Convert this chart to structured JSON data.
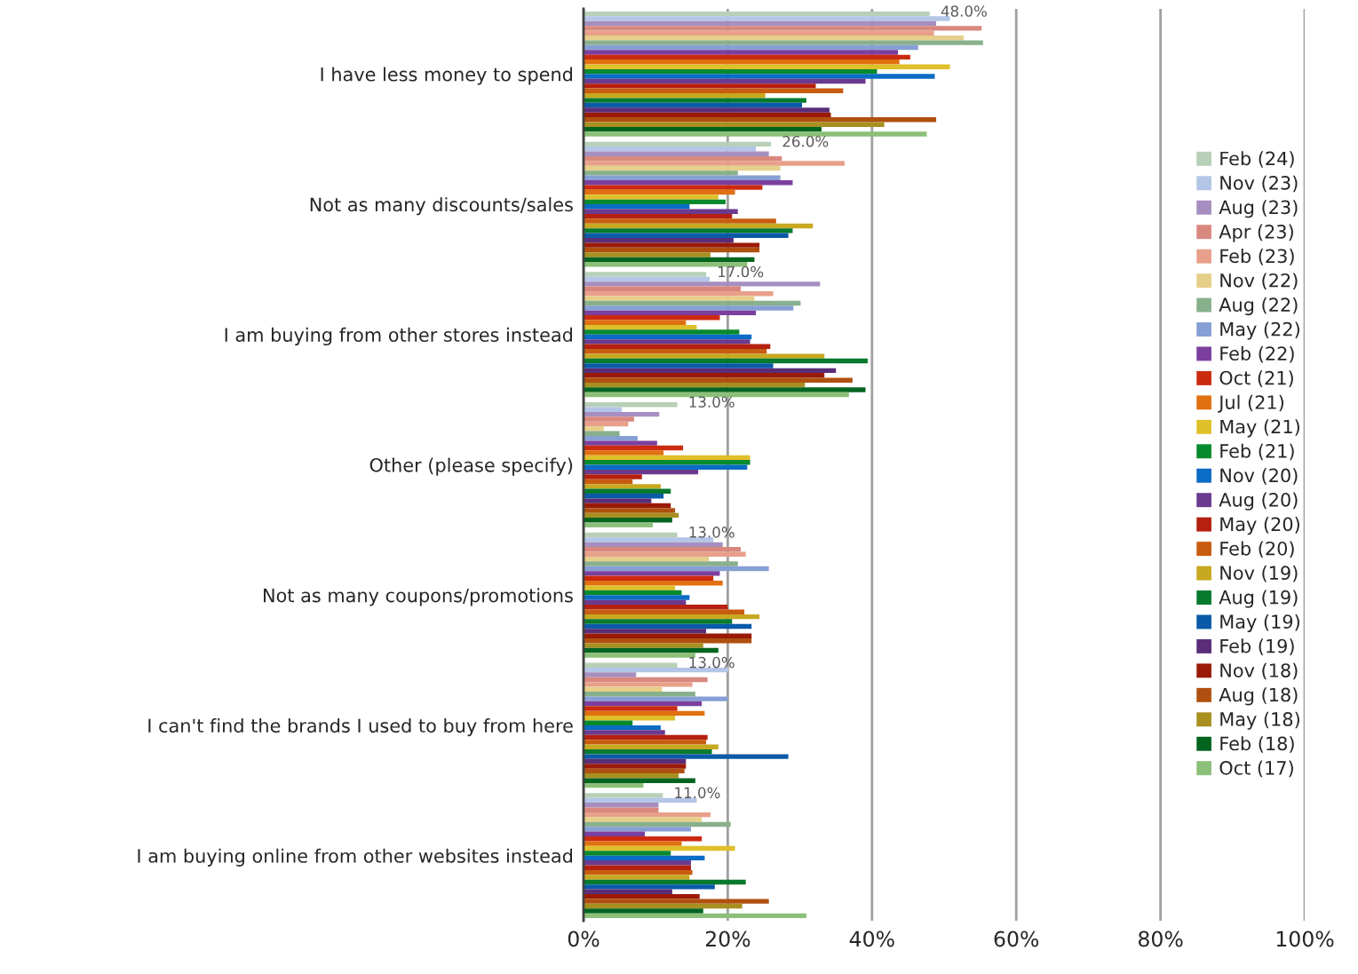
{
  "chart_data": {
    "type": "bar",
    "orientation": "horizontal",
    "categories": [
      "I have less money to spend",
      "Not as many discounts/sales",
      "I am buying from other stores instead",
      "Other (please specify)",
      "Not as many coupons/promotions",
      "I can't find the brands I used to buy from here",
      "I am buying online from other websites instead"
    ],
    "series": [
      {
        "name": "Feb (24)",
        "color": "#b8cfb8",
        "values": [
          48.0,
          26.0,
          17.0,
          13.0,
          13.0,
          13.0,
          11.0
        ],
        "value_labels": [
          "48.0%",
          "26.0%",
          "17.0%",
          "13.0%",
          "13.0%",
          "13.0%",
          "11.0%"
        ]
      },
      {
        "name": "Nov (23)",
        "color": "#b4c6e7",
        "values": [
          50.8,
          23.9,
          17.5,
          5.3,
          18.0,
          20.1,
          15.7
        ]
      },
      {
        "name": "Aug (23)",
        "color": "#a68fc0",
        "values": [
          48.9,
          25.7,
          32.8,
          10.5,
          19.3,
          7.3,
          10.4
        ]
      },
      {
        "name": "Apr (23)",
        "color": "#d98880",
        "values": [
          55.2,
          27.5,
          21.8,
          7.0,
          21.8,
          17.2,
          10.4
        ]
      },
      {
        "name": "Feb (23)",
        "color": "#e8a08a",
        "values": [
          48.6,
          36.2,
          26.3,
          6.2,
          22.5,
          15.1,
          17.6
        ]
      },
      {
        "name": "Nov (22)",
        "color": "#e6cf8a",
        "values": [
          52.7,
          27.3,
          23.7,
          2.8,
          17.4,
          10.9,
          16.4
        ]
      },
      {
        "name": "Aug (22)",
        "color": "#88b08c",
        "values": [
          55.4,
          21.4,
          30.1,
          5.0,
          21.4,
          15.5,
          20.4
        ]
      },
      {
        "name": "May (22)",
        "color": "#869fd4",
        "values": [
          46.4,
          27.3,
          29.1,
          7.5,
          25.7,
          20.0,
          14.9
        ]
      },
      {
        "name": "Feb (22)",
        "color": "#7b3f9e",
        "values": [
          43.6,
          29.0,
          23.9,
          10.2,
          18.9,
          16.4,
          8.5
        ]
      },
      {
        "name": "Oct (21)",
        "color": "#cc2a0f",
        "values": [
          45.3,
          24.8,
          18.9,
          13.8,
          18.0,
          13.0,
          16.4
        ]
      },
      {
        "name": "Jul (21)",
        "color": "#e07010",
        "values": [
          43.8,
          21.0,
          14.2,
          11.1,
          19.3,
          16.8,
          13.6
        ]
      },
      {
        "name": "May (21)",
        "color": "#dfc02a",
        "values": [
          50.8,
          18.7,
          15.7,
          23.1,
          12.7,
          12.7,
          21.0
        ]
      },
      {
        "name": "Feb (21)",
        "color": "#078a2e",
        "values": [
          40.7,
          19.7,
          21.6,
          23.1,
          13.6,
          6.8,
          12.1
        ]
      },
      {
        "name": "Nov (20)",
        "color": "#0a6cc4",
        "values": [
          48.7,
          14.7,
          23.3,
          22.7,
          14.7,
          10.7,
          16.8
        ]
      },
      {
        "name": "Aug (20)",
        "color": "#6a3a8e",
        "values": [
          39.1,
          21.4,
          23.1,
          15.9,
          14.2,
          11.3,
          14.9
        ]
      },
      {
        "name": "May (20)",
        "color": "#b52010",
        "values": [
          32.2,
          20.6,
          25.9,
          8.1,
          20.0,
          17.2,
          14.9
        ]
      },
      {
        "name": "Feb (20)",
        "color": "#c85c10",
        "values": [
          36.0,
          26.7,
          25.4,
          6.8,
          22.3,
          17.0,
          15.1
        ]
      },
      {
        "name": "Nov (19)",
        "color": "#c8a820",
        "values": [
          25.2,
          31.8,
          33.4,
          10.7,
          24.4,
          18.7,
          14.7
        ]
      },
      {
        "name": "Aug (19)",
        "color": "#077a2e",
        "values": [
          30.9,
          29.0,
          39.4,
          12.1,
          20.6,
          17.8,
          22.5
        ]
      },
      {
        "name": "May (19)",
        "color": "#0a5aa8",
        "values": [
          30.3,
          28.4,
          26.3,
          11.1,
          23.3,
          28.4,
          18.2
        ]
      },
      {
        "name": "Feb (19)",
        "color": "#5a2d78",
        "values": [
          34.1,
          20.8,
          35.0,
          9.4,
          17.0,
          14.2,
          12.3
        ]
      },
      {
        "name": "Nov (18)",
        "color": "#9a1a08",
        "values": [
          34.3,
          24.4,
          33.4,
          12.1,
          23.3,
          14.2,
          16.1
        ]
      },
      {
        "name": "Aug (18)",
        "color": "#b05010",
        "values": [
          48.9,
          24.4,
          37.3,
          12.7,
          23.3,
          14.0,
          25.7
        ]
      },
      {
        "name": "May (18)",
        "color": "#a89020",
        "values": [
          41.7,
          17.6,
          30.7,
          13.2,
          16.6,
          13.2,
          22.0
        ]
      },
      {
        "name": "Feb (18)",
        "color": "#036420",
        "values": [
          33.0,
          23.7,
          39.1,
          12.3,
          18.7,
          15.5,
          16.6
        ]
      },
      {
        "name": "Oct (17)",
        "color": "#8cc07a",
        "values": [
          47.6,
          22.7,
          36.8,
          9.6,
          15.5,
          8.3,
          30.9
        ]
      }
    ],
    "xlim": [
      0,
      100
    ],
    "xticks": [
      {
        "value": 0,
        "label": "0%"
      },
      {
        "value": 20,
        "label": "20%"
      },
      {
        "value": 40,
        "label": "40%"
      },
      {
        "value": 60,
        "label": "60%"
      },
      {
        "value": 80,
        "label": "80%"
      },
      {
        "value": 100,
        "label": "100%"
      }
    ],
    "grid": "x",
    "legend": "right"
  }
}
